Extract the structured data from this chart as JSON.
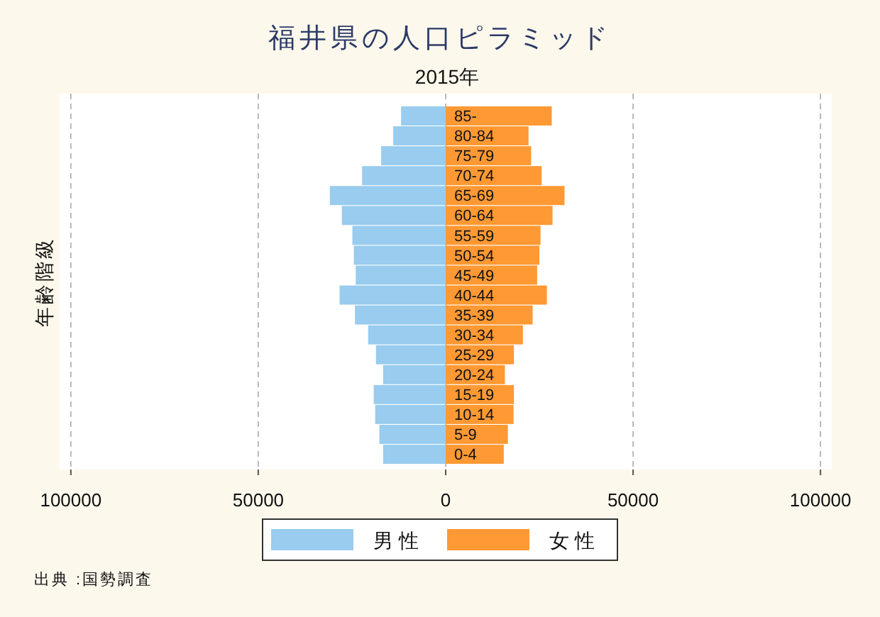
{
  "chart_data": {
    "type": "bar",
    "orientation": "horizontal",
    "stacked": true,
    "title": "福井県の人口ピラミッド",
    "subtitle": "2015年",
    "ylabel": "年齢階級",
    "annotations": [
      "出典 :国勢調査"
    ],
    "categories": [
      "85-",
      "80-84",
      "75-79",
      "70-74",
      "65-69",
      "60-64",
      "55-59",
      "50-54",
      "45-49",
      "40-44",
      "35-39",
      "30-34",
      "25-29",
      "20-24",
      "15-19",
      "10-14",
      "5-9",
      "0-4"
    ],
    "series": [
      {
        "name": "男性",
        "color": "#99ccee",
        "values": [
          -11900,
          -14000,
          -17200,
          -22300,
          -30900,
          -27700,
          -24900,
          -24500,
          -24000,
          -28300,
          -24200,
          -20700,
          -18600,
          -16700,
          -19200,
          -18800,
          -17700,
          -16700
        ]
      },
      {
        "name": "女性",
        "color": "#ff9933",
        "values": [
          28300,
          22100,
          22800,
          25600,
          31700,
          28500,
          25300,
          25000,
          24400,
          27000,
          23200,
          20600,
          18200,
          15800,
          18200,
          18100,
          16600,
          15500
        ]
      }
    ],
    "xlim": [
      -103000,
      103000
    ],
    "xticks": [
      {
        "value": -100000,
        "label": "100000"
      },
      {
        "value": -50000,
        "label": "50000"
      },
      0,
      50000,
      100000
    ],
    "grid": "x",
    "legend": "bottom"
  }
}
